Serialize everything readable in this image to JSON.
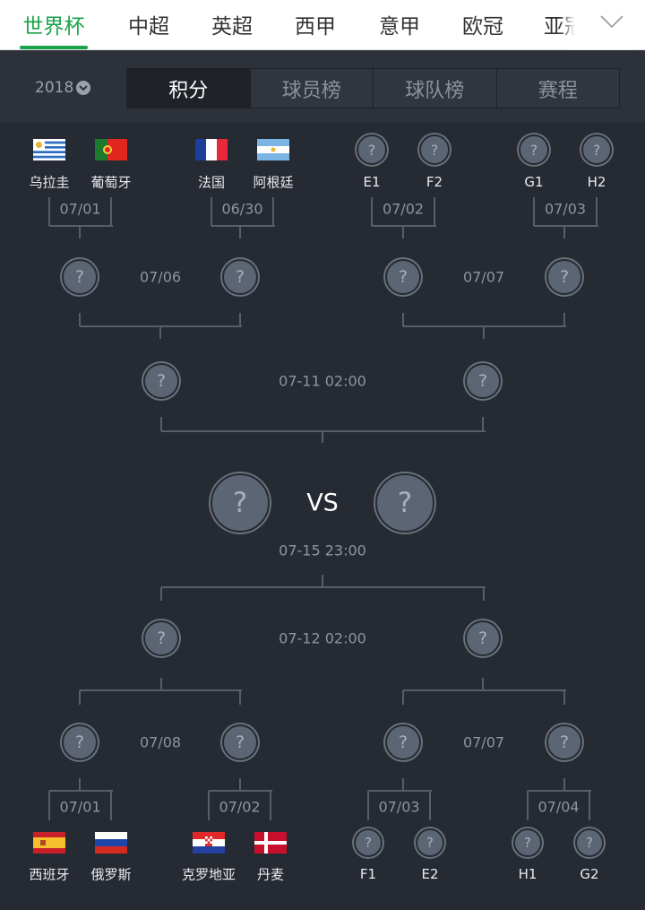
{
  "nav": {
    "items": [
      "世界杯",
      "中超",
      "英超",
      "西甲",
      "意甲",
      "欧冠",
      "亚冠"
    ],
    "active_index": 0,
    "more_icon": "chevron-down-icon",
    "accent_color": "#1aa34a"
  },
  "subheader": {
    "year": "2018",
    "tabs": [
      "积分",
      "球员榜",
      "球队榜",
      "赛程"
    ],
    "active_tab": 0
  },
  "bracket": {
    "top_r16": [
      {
        "date": "07/01",
        "teams": [
          {
            "name": "乌拉圭",
            "flag": "uruguay"
          },
          {
            "name": "葡萄牙",
            "flag": "portugal"
          }
        ]
      },
      {
        "date": "06/30",
        "teams": [
          {
            "name": "法国",
            "flag": "france"
          },
          {
            "name": "阿根廷",
            "flag": "argentina"
          }
        ]
      },
      {
        "date": "07/02",
        "teams": [
          {
            "name": "E1",
            "flag": null
          },
          {
            "name": "F2",
            "flag": null
          }
        ]
      },
      {
        "date": "07/03",
        "teams": [
          {
            "name": "G1",
            "flag": null
          },
          {
            "name": "H2",
            "flag": null
          }
        ]
      }
    ],
    "top_qf_dates": [
      "07/06",
      "07/07"
    ],
    "top_sf_date": "07-11 02:00",
    "final": {
      "vs": "VS",
      "date": "07-15 23:00"
    },
    "bottom_sf_date": "07-12 02:00",
    "bottom_qf_dates": [
      "07/08",
      "07/07"
    ],
    "bottom_r16": [
      {
        "date": "07/01",
        "teams": [
          {
            "name": "西班牙",
            "flag": "spain"
          },
          {
            "name": "俄罗斯",
            "flag": "russia"
          }
        ]
      },
      {
        "date": "07/02",
        "teams": [
          {
            "name": "克罗地亚",
            "flag": "croatia"
          },
          {
            "name": "丹麦",
            "flag": "denmark"
          }
        ]
      },
      {
        "date": "07/03",
        "teams": [
          {
            "name": "F1",
            "flag": null
          },
          {
            "name": "E2",
            "flag": null
          }
        ]
      },
      {
        "date": "07/04",
        "teams": [
          {
            "name": "H1",
            "flag": null
          },
          {
            "name": "G2",
            "flag": null
          }
        ]
      }
    ],
    "unknown_symbol": "?"
  }
}
